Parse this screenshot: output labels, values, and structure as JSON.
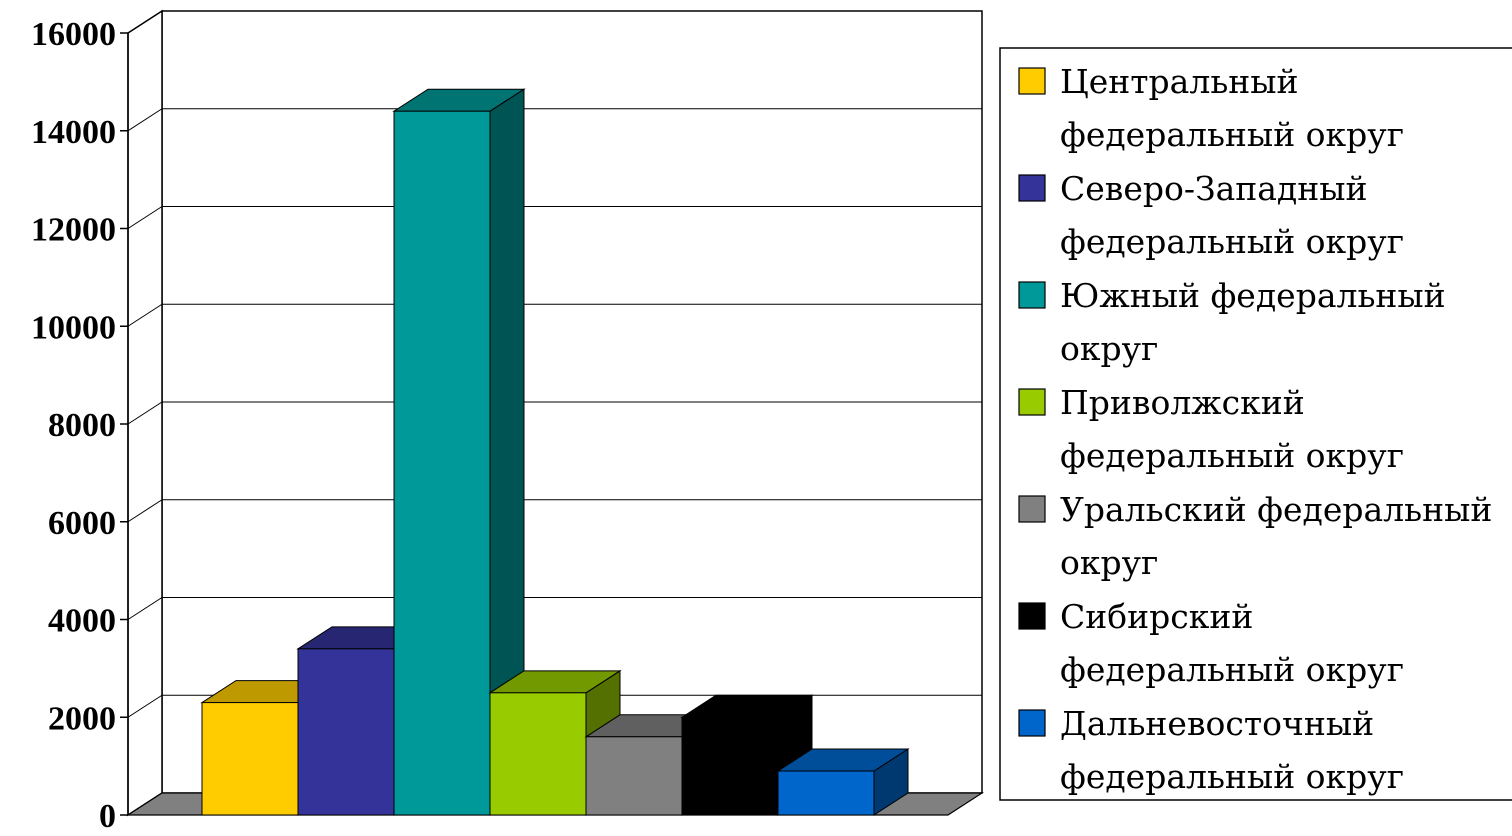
{
  "chart_data": {
    "type": "bar",
    "title": "",
    "xlabel": "",
    "ylabel": "",
    "ylim": [
      0,
      16000
    ],
    "yticks": [
      "0",
      "2000",
      "4000",
      "6000",
      "8000",
      "10000",
      "12000",
      "14000",
      "16000"
    ],
    "grid": true,
    "three_d": true,
    "legend_position": "right",
    "series": [
      {
        "name": "Центральный федеральный округ",
        "value": 2300,
        "color": "#FFCC00",
        "legend_lines": [
          "Центральный",
          "федеральный округ"
        ]
      },
      {
        "name": "Северо-Западный федеральный округ",
        "value": 3400,
        "color": "#333399",
        "legend_lines": [
          "Северо-Западный",
          "федеральный округ"
        ]
      },
      {
        "name": "Южный федеральный округ",
        "value": 14400,
        "color": "#009999",
        "legend_lines": [
          "Южный федеральный",
          "округ"
        ]
      },
      {
        "name": "Приволжский федеральный округ",
        "value": 2500,
        "color": "#99CC00",
        "legend_lines": [
          "Приволжский",
          "федеральный округ"
        ]
      },
      {
        "name": "Уральский федеральный округ",
        "value": 1600,
        "color": "#808080",
        "legend_lines": [
          "Уральский федеральный",
          "округ"
        ]
      },
      {
        "name": "Сибирский федеральный округ",
        "value": 2000,
        "color": "#000000",
        "legend_lines": [
          "Сибирский",
          "федеральный округ"
        ]
      },
      {
        "name": "Дальневосточный федеральный округ",
        "value": 900,
        "color": "#0066CC",
        "legend_lines": [
          "Дальневосточный",
          "федеральный округ"
        ]
      }
    ]
  }
}
